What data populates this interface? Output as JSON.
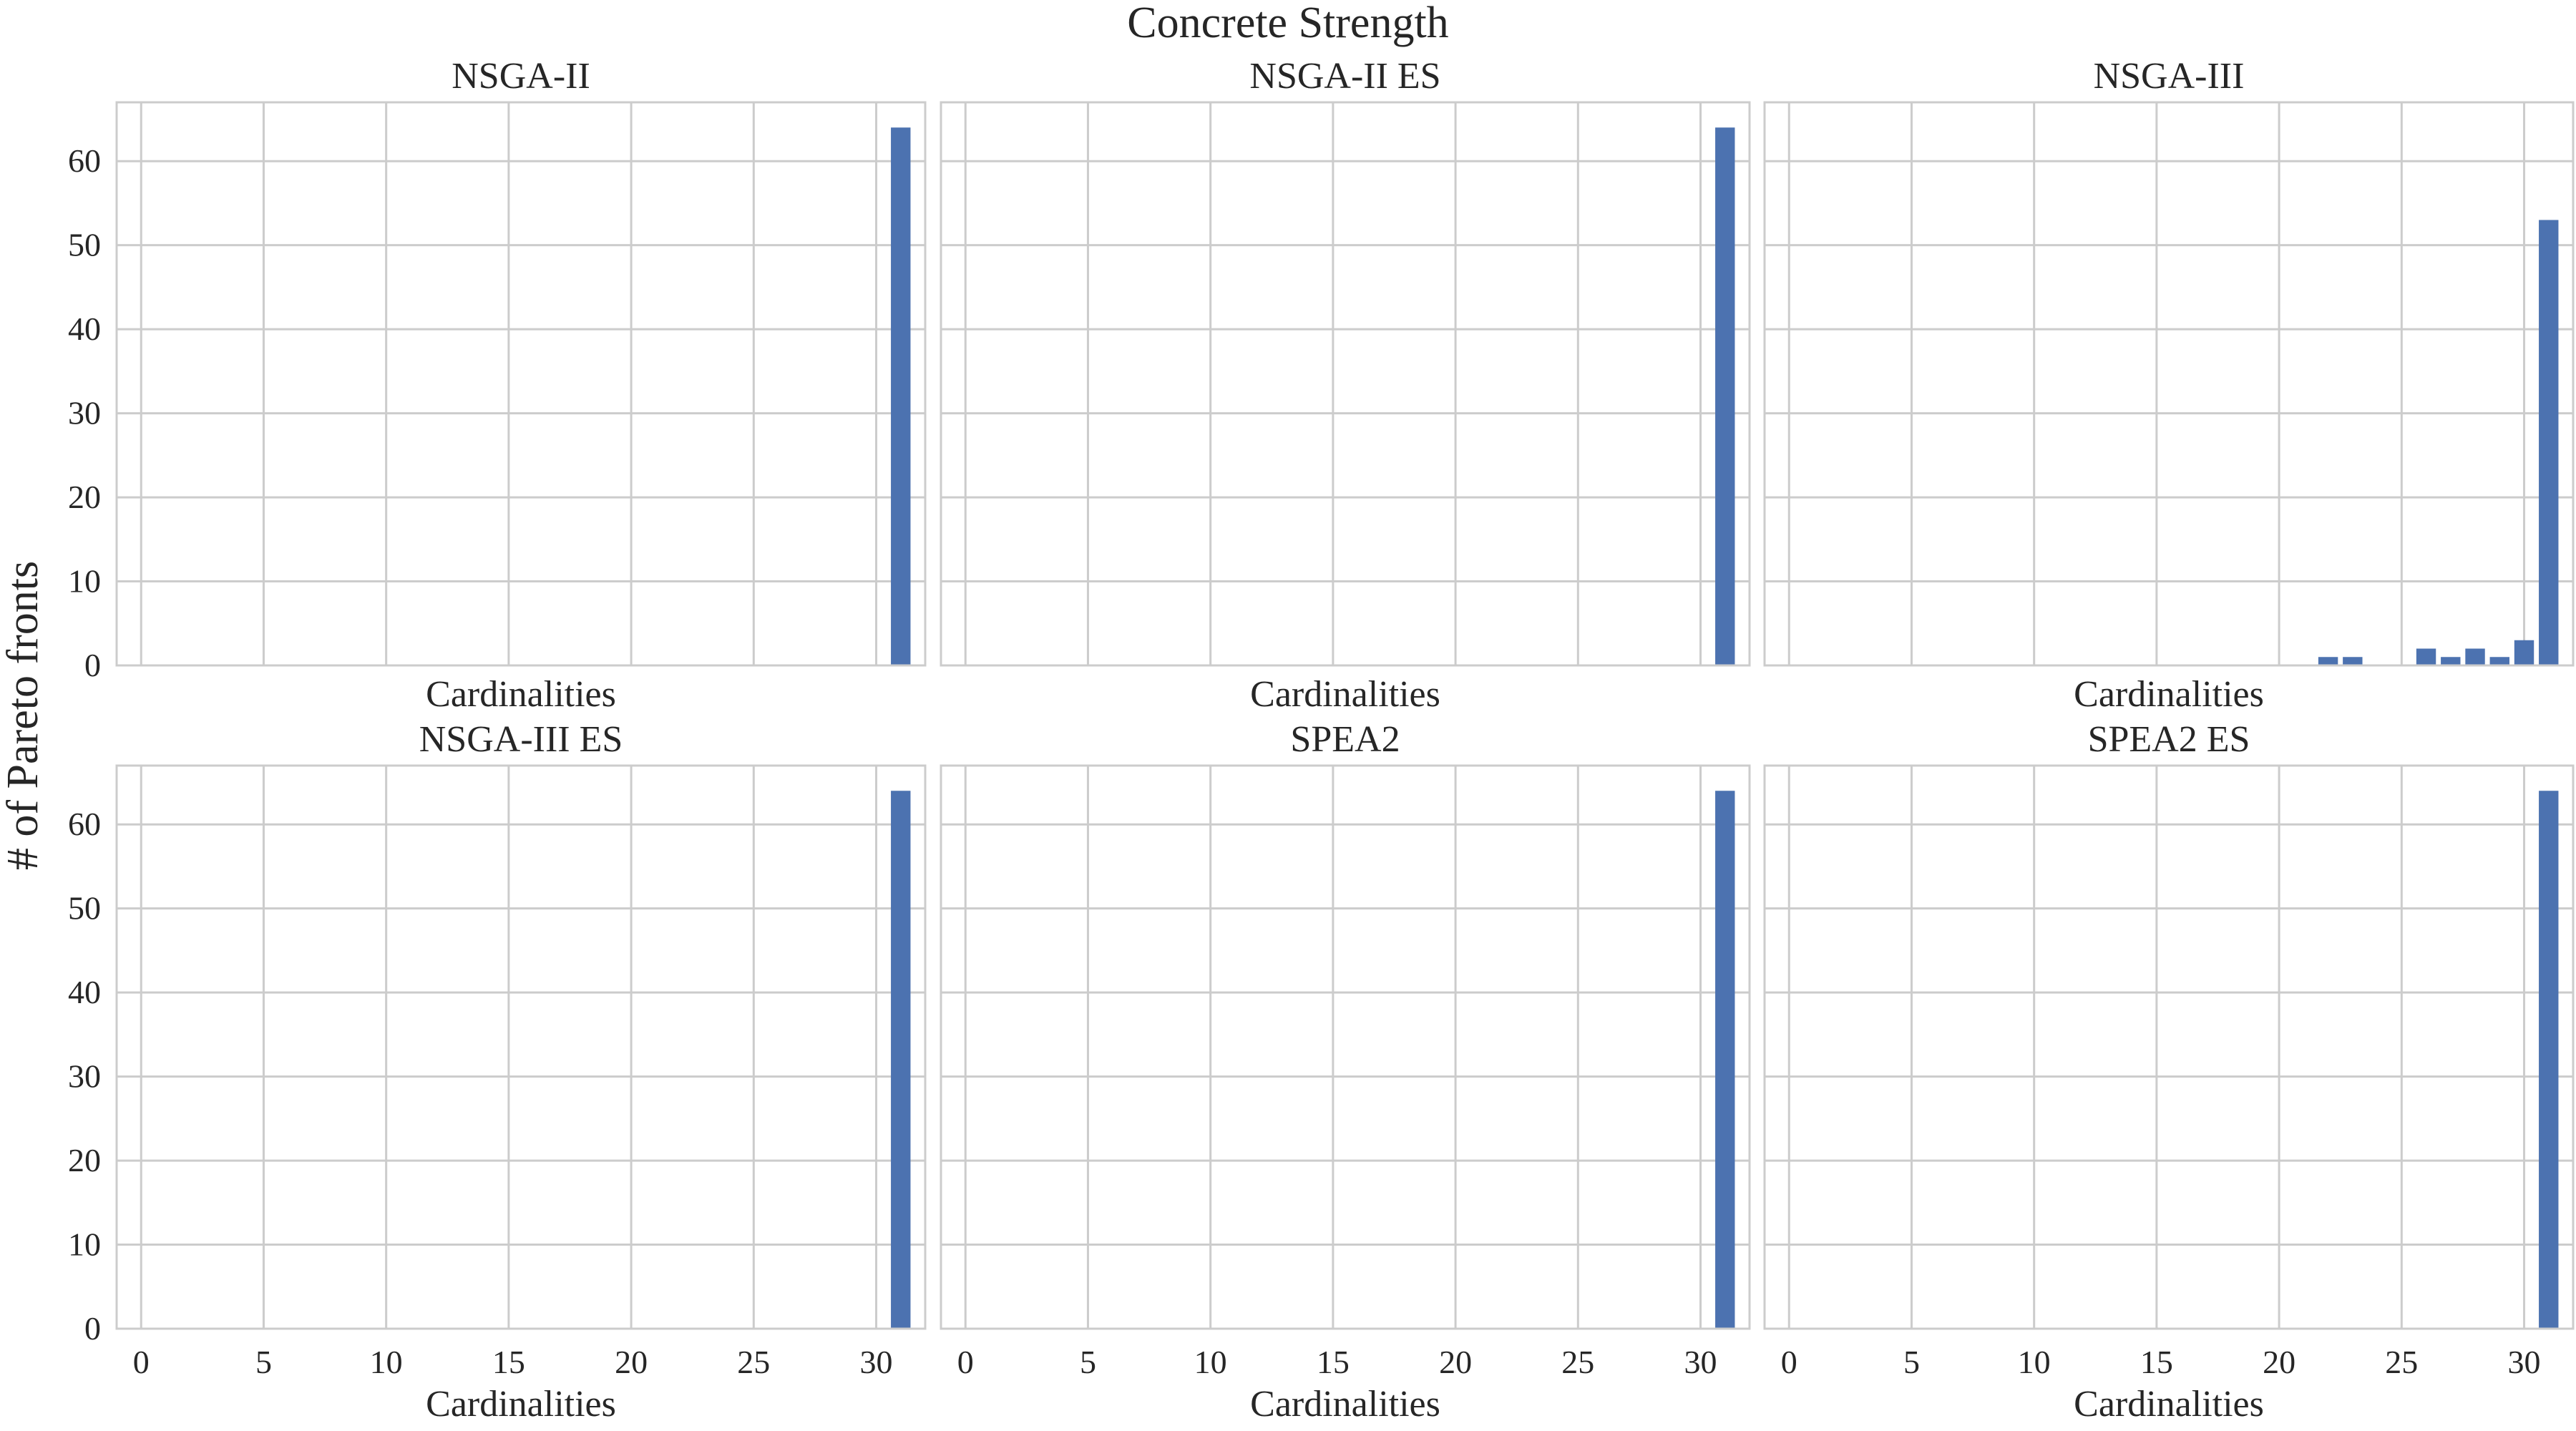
{
  "figure": {
    "title": "Concrete Strength",
    "ylabel": "# of Pareto fronts",
    "bar_color": "#4c72b0",
    "grid_color": "#cccccc"
  },
  "chart_data": [
    {
      "type": "bar",
      "title": "NSGA-II",
      "xlabel": "Cardinalities",
      "ylabel": "",
      "xlim": [
        -1,
        32
      ],
      "ylim": [
        0,
        67
      ],
      "xticks": [
        0,
        5,
        10,
        15,
        20,
        25,
        30
      ],
      "yticks": [
        0,
        10,
        20,
        30,
        40,
        50,
        60
      ],
      "show_xtick_labels": false,
      "show_ytick_labels": true,
      "grid": true,
      "x": [
        31
      ],
      "values": [
        64
      ]
    },
    {
      "type": "bar",
      "title": "NSGA-II ES",
      "xlabel": "Cardinalities",
      "ylabel": "",
      "xlim": [
        -1,
        32
      ],
      "ylim": [
        0,
        67
      ],
      "xticks": [
        0,
        5,
        10,
        15,
        20,
        25,
        30
      ],
      "yticks": [
        0,
        10,
        20,
        30,
        40,
        50,
        60
      ],
      "show_xtick_labels": false,
      "show_ytick_labels": false,
      "grid": true,
      "x": [
        31
      ],
      "values": [
        64
      ]
    },
    {
      "type": "bar",
      "title": "NSGA-III",
      "xlabel": "Cardinalities",
      "ylabel": "",
      "xlim": [
        -1,
        32
      ],
      "ylim": [
        0,
        67
      ],
      "xticks": [
        0,
        5,
        10,
        15,
        20,
        25,
        30
      ],
      "yticks": [
        0,
        10,
        20,
        30,
        40,
        50,
        60
      ],
      "show_xtick_labels": false,
      "show_ytick_labels": false,
      "grid": true,
      "x": [
        22,
        23,
        26,
        27,
        28,
        29,
        30,
        31
      ],
      "values": [
        1,
        1,
        2,
        1,
        2,
        1,
        3,
        53
      ]
    },
    {
      "type": "bar",
      "title": "NSGA-III ES",
      "xlabel": "Cardinalities",
      "ylabel": "",
      "xlim": [
        -1,
        32
      ],
      "ylim": [
        0,
        67
      ],
      "xticks": [
        0,
        5,
        10,
        15,
        20,
        25,
        30
      ],
      "yticks": [
        0,
        10,
        20,
        30,
        40,
        50,
        60
      ],
      "show_xtick_labels": true,
      "show_ytick_labels": true,
      "grid": true,
      "x": [
        31
      ],
      "values": [
        64
      ]
    },
    {
      "type": "bar",
      "title": "SPEA2",
      "xlabel": "Cardinalities",
      "ylabel": "",
      "xlim": [
        -1,
        32
      ],
      "ylim": [
        0,
        67
      ],
      "xticks": [
        0,
        5,
        10,
        15,
        20,
        25,
        30
      ],
      "yticks": [
        0,
        10,
        20,
        30,
        40,
        50,
        60
      ],
      "show_xtick_labels": true,
      "show_ytick_labels": false,
      "grid": true,
      "x": [
        31
      ],
      "values": [
        64
      ]
    },
    {
      "type": "bar",
      "title": "SPEA2 ES",
      "xlabel": "Cardinalities",
      "ylabel": "",
      "xlim": [
        -1,
        32
      ],
      "ylim": [
        0,
        67
      ],
      "xticks": [
        0,
        5,
        10,
        15,
        20,
        25,
        30
      ],
      "yticks": [
        0,
        10,
        20,
        30,
        40,
        50,
        60
      ],
      "show_xtick_labels": true,
      "show_ytick_labels": false,
      "grid": true,
      "x": [
        31
      ],
      "values": [
        64
      ]
    }
  ]
}
